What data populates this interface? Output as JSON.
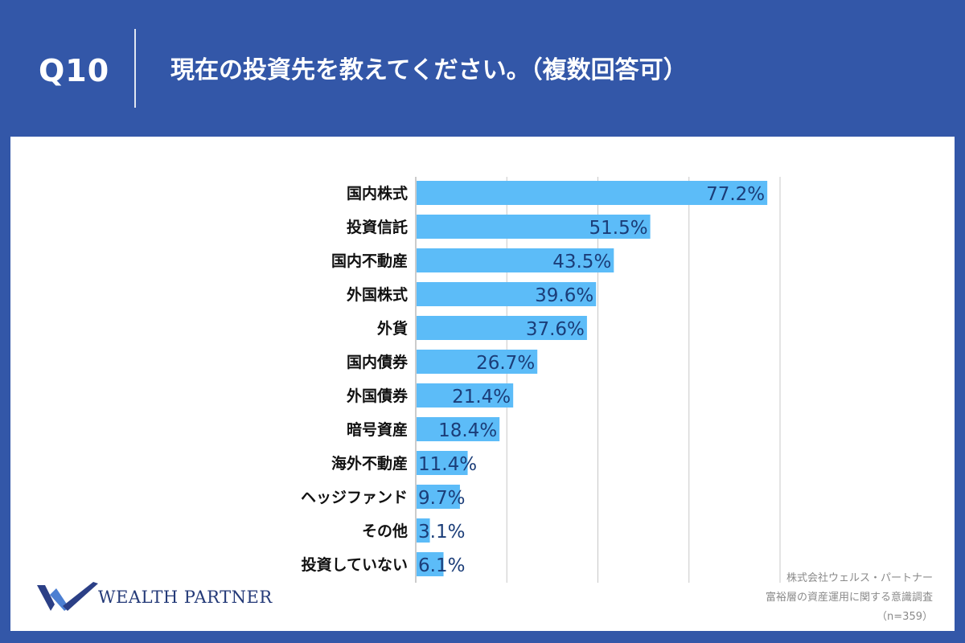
{
  "header": {
    "question_number": "Q10",
    "question_title": "現在の投資先を教えてください。（複数回答可）"
  },
  "chart_data": {
    "type": "bar",
    "orientation": "horizontal",
    "categories": [
      "国内株式",
      "投資信託",
      "国内不動産",
      "外国株式",
      "外貨",
      "国内債券",
      "外国債券",
      "暗号資産",
      "海外不動産",
      "ヘッジファンド",
      "その他",
      "投資していない"
    ],
    "value_labels": [
      "77.2%",
      "51.5%",
      "43.5%",
      "39.6%",
      "37.6%",
      "26.7%",
      "21.4%",
      "18.4%",
      "11.4%",
      "9.7%",
      "3.1%",
      "6.1%"
    ],
    "values": [
      77.2,
      51.5,
      43.5,
      39.6,
      37.6,
      26.7,
      21.4,
      18.4,
      11.4,
      9.7,
      3.1,
      6.1
    ],
    "xlim": [
      0,
      80
    ],
    "grid": true,
    "gridlines": [
      0,
      20,
      40,
      60,
      80
    ],
    "bar_color": "#5cbcf8",
    "label_color": "#1b3d78"
  },
  "brand": {
    "name": "WEALTH PARTNER",
    "logo_colors": [
      "#2b3f86",
      "#4c7fd2"
    ]
  },
  "source": {
    "company": "株式会社ウェルス・パートナー",
    "survey": "富裕層の資産運用に関する意識調査",
    "sample": "（n=359）"
  }
}
